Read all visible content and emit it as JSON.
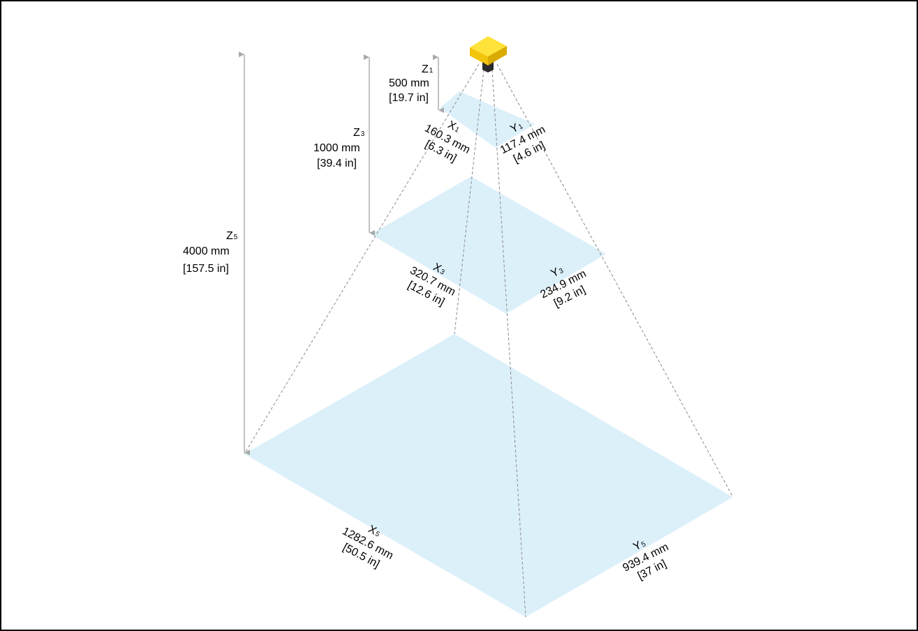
{
  "diagram": {
    "camera": {
      "icon": "sensor-camera-icon",
      "body_color": "#f6d21b",
      "lens_color": "#2b2b2b"
    },
    "plane_color": "#dcf0fa",
    "distances": [
      {
        "id": "z1",
        "letter": "Z",
        "sub": "1",
        "mm": "500 mm",
        "inch": "[19.7 in]"
      },
      {
        "id": "z3",
        "letter": "Z",
        "sub": "3",
        "mm": "1000 mm",
        "inch": "[39.4 in]"
      },
      {
        "id": "z5",
        "letter": "Z",
        "sub": "5",
        "mm": "4000 mm",
        "inch": "[157.5 in]"
      }
    ],
    "planes": [
      {
        "id": "plane-1",
        "x": {
          "letter": "X",
          "sub": "1",
          "mm": "160.3 mm",
          "inch": "[6.3 in]"
        },
        "y": {
          "letter": "Y",
          "sub": "1",
          "mm": "117.4 mm",
          "inch": "[4.6 in]"
        }
      },
      {
        "id": "plane-3",
        "x": {
          "letter": "X",
          "sub": "3",
          "mm": "320.7 mm",
          "inch": "[12.6 in]"
        },
        "y": {
          "letter": "Y",
          "sub": "3",
          "mm": "234.9 mm",
          "inch": "[9.2 in]"
        }
      },
      {
        "id": "plane-5",
        "x": {
          "letter": "X",
          "sub": "5",
          "mm": "1282.6 mm",
          "inch": "[50.5 in]"
        },
        "y": {
          "letter": "Y",
          "sub": "5",
          "mm": "939.4 mm",
          "inch": "[37 in]"
        }
      }
    ]
  }
}
